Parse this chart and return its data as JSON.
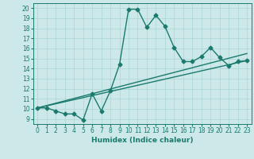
{
  "xlabel": "Humidex (Indice chaleur)",
  "bg_color": "#cce8e8",
  "line_color": "#1a7a6e",
  "xlim": [
    -0.5,
    23.5
  ],
  "ylim": [
    8.5,
    20.5
  ],
  "xticks": [
    0,
    1,
    2,
    3,
    4,
    5,
    6,
    7,
    8,
    9,
    10,
    11,
    12,
    13,
    14,
    15,
    16,
    17,
    18,
    19,
    20,
    21,
    22,
    23
  ],
  "yticks": [
    9,
    10,
    11,
    12,
    13,
    14,
    15,
    16,
    17,
    18,
    19,
    20
  ],
  "line1_x": [
    0,
    1,
    2,
    3,
    4,
    5,
    6,
    7,
    8,
    9,
    10,
    11,
    12,
    13,
    14,
    15,
    16,
    17,
    18,
    19,
    20,
    21,
    22,
    23
  ],
  "line1_y": [
    10.1,
    10.1,
    9.8,
    9.5,
    9.5,
    8.9,
    11.5,
    9.8,
    11.8,
    14.4,
    19.9,
    19.9,
    18.1,
    19.3,
    18.2,
    16.1,
    14.7,
    14.7,
    15.2,
    16.1,
    15.1,
    14.3,
    14.7,
    14.8
  ],
  "line2_x": [
    0,
    23
  ],
  "line2_y": [
    10.1,
    14.8
  ],
  "line3_x": [
    0,
    23
  ],
  "line3_y": [
    10.1,
    15.5
  ],
  "grid_color": "#b0d8d8",
  "marker": "D",
  "markersize": 2.5,
  "linewidth": 1.0,
  "axis_fontsize": 6.5,
  "tick_fontsize": 5.5
}
